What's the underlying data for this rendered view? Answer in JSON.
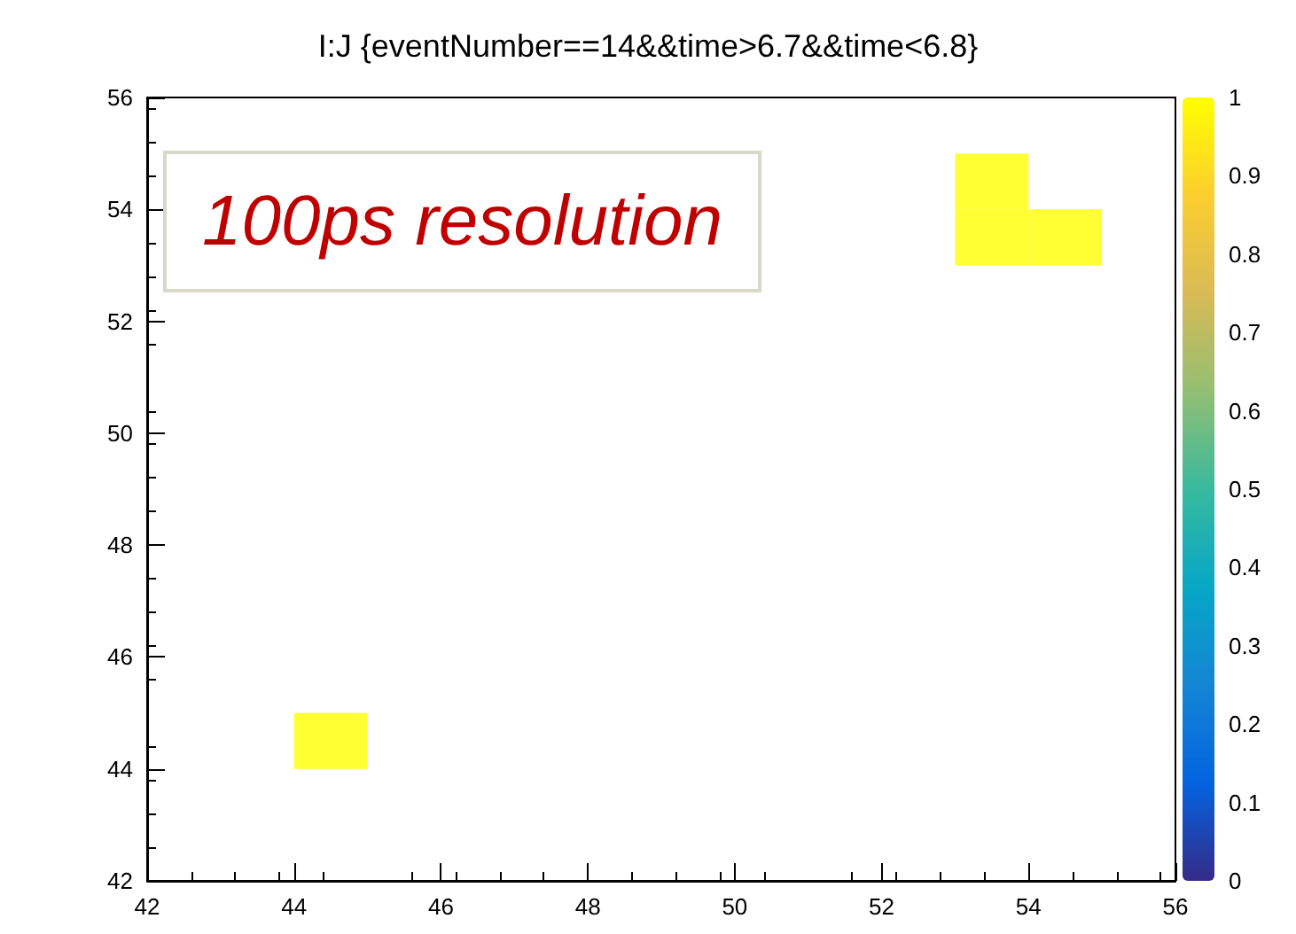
{
  "chart_data": {
    "type": "scatter",
    "title": "I:J {eventNumber==14&&time>6.7&&time<6.8}",
    "x": [
      44.5,
      53.5,
      53.5,
      54.5
    ],
    "values": [
      44.5,
      54.5,
      53.5,
      53.5
    ],
    "cvalues": [
      1,
      1,
      1,
      1
    ],
    "marker": "square",
    "xlim": [
      42,
      56
    ],
    "xticks": [
      42,
      44,
      46,
      48,
      50,
      52,
      54,
      56
    ],
    "ylim": [
      42,
      56
    ],
    "yticks": [
      42,
      44,
      46,
      48,
      50,
      52,
      54,
      56
    ],
    "clim": [
      0,
      1
    ],
    "cticks": [
      0,
      0.1,
      0.2,
      0.3,
      0.4,
      0.5,
      0.6,
      0.7,
      0.8,
      0.9,
      1
    ],
    "annotations": [
      "100ps resolution"
    ]
  }
}
